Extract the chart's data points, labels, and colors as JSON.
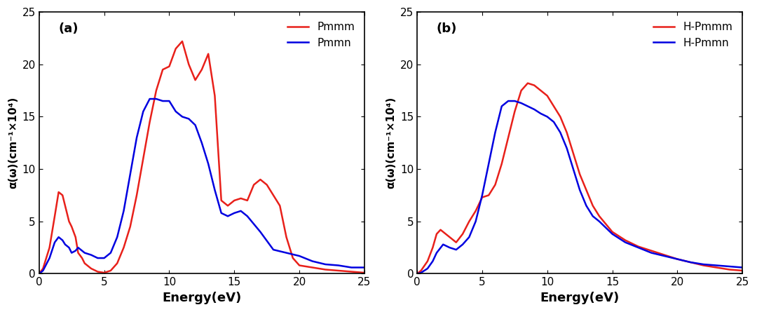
{
  "panel_a": {
    "label": "(a)",
    "legend": [
      "Pmmm",
      "Pmmn"
    ],
    "colors": [
      "#e8201a",
      "#0000e0"
    ],
    "xlabel": "Energy(eV)",
    "ylabel": "α(ω)(cm⁻¹×10⁴)",
    "xlim": [
      0,
      25
    ],
    "ylim": [
      0,
      25
    ],
    "yticks": [
      0,
      5,
      10,
      15,
      20,
      25
    ],
    "xticks": [
      0,
      5,
      10,
      15,
      20,
      25
    ],
    "red_x": [
      0,
      0.3,
      0.8,
      1.2,
      1.5,
      1.8,
      2.0,
      2.3,
      2.5,
      2.8,
      3.0,
      3.3,
      3.5,
      4.0,
      4.5,
      5.0,
      5.5,
      6.0,
      6.5,
      7.0,
      7.5,
      8.0,
      8.5,
      9.0,
      9.5,
      10.0,
      10.5,
      11.0,
      11.5,
      12.0,
      12.5,
      13.0,
      13.5,
      14.0,
      14.5,
      15.0,
      15.5,
      16.0,
      16.5,
      17.0,
      17.5,
      18.0,
      18.5,
      19.0,
      19.5,
      20.0,
      20.5,
      21.0,
      22.0,
      23.0,
      24.0,
      25.0
    ],
    "red_y": [
      0,
      0.5,
      2.5,
      5.5,
      7.8,
      7.5,
      6.5,
      5.0,
      4.5,
      3.5,
      2.0,
      1.5,
      1.0,
      0.5,
      0.2,
      0.1,
      0.3,
      1.0,
      2.5,
      4.5,
      7.5,
      11.0,
      14.5,
      17.5,
      19.5,
      19.8,
      21.5,
      22.2,
      20.0,
      18.5,
      19.5,
      21.0,
      17.0,
      7.0,
      6.5,
      7.0,
      7.2,
      7.0,
      8.5,
      9.0,
      8.5,
      7.5,
      6.5,
      3.5,
      1.5,
      0.8,
      0.7,
      0.6,
      0.4,
      0.3,
      0.2,
      0.1
    ],
    "blue_x": [
      0,
      0.3,
      0.8,
      1.2,
      1.5,
      1.8,
      2.0,
      2.3,
      2.5,
      2.8,
      3.0,
      3.5,
      4.0,
      4.5,
      5.0,
      5.5,
      6.0,
      6.5,
      7.0,
      7.5,
      8.0,
      8.5,
      9.0,
      9.5,
      10.0,
      10.5,
      11.0,
      11.5,
      12.0,
      12.5,
      13.0,
      13.5,
      14.0,
      14.5,
      15.0,
      15.5,
      16.0,
      17.0,
      18.0,
      19.0,
      20.0,
      21.0,
      22.0,
      23.0,
      24.0,
      25.0
    ],
    "blue_y": [
      0,
      0.3,
      1.5,
      3.0,
      3.5,
      3.2,
      2.8,
      2.5,
      2.0,
      2.2,
      2.5,
      2.0,
      1.8,
      1.5,
      1.5,
      2.0,
      3.5,
      6.0,
      9.5,
      13.0,
      15.5,
      16.7,
      16.7,
      16.5,
      16.5,
      15.5,
      15.0,
      14.8,
      14.2,
      12.5,
      10.5,
      8.0,
      5.8,
      5.5,
      5.8,
      6.0,
      5.5,
      4.0,
      2.3,
      2.0,
      1.7,
      1.2,
      0.9,
      0.8,
      0.6,
      0.6
    ]
  },
  "panel_b": {
    "label": "(b)",
    "legend": [
      "H-Pmmm",
      "H-Pmmn"
    ],
    "colors": [
      "#e8201a",
      "#0000e0"
    ],
    "xlabel": "Energy(eV)",
    "ylabel": "α(ω)(cm⁻¹×10⁴)",
    "xlim": [
      0,
      25
    ],
    "ylim": [
      0,
      25
    ],
    "yticks": [
      0,
      5,
      10,
      15,
      20,
      25
    ],
    "xticks": [
      0,
      5,
      10,
      15,
      20,
      25
    ],
    "red_x": [
      0,
      0.3,
      0.8,
      1.2,
      1.5,
      1.8,
      2.0,
      2.5,
      3.0,
      3.5,
      4.0,
      4.5,
      5.0,
      5.5,
      6.0,
      6.5,
      7.0,
      7.5,
      8.0,
      8.5,
      9.0,
      9.5,
      10.0,
      10.5,
      11.0,
      11.5,
      12.0,
      12.5,
      13.0,
      13.5,
      14.0,
      15.0,
      16.0,
      17.0,
      18.0,
      19.0,
      20.0,
      21.0,
      22.0,
      23.0,
      24.0,
      25.0
    ],
    "red_y": [
      0,
      0.3,
      1.2,
      2.5,
      3.8,
      4.2,
      4.0,
      3.5,
      3.0,
      3.8,
      5.0,
      6.0,
      7.3,
      7.5,
      8.5,
      10.5,
      13.0,
      15.5,
      17.5,
      18.2,
      18.0,
      17.5,
      17.0,
      16.0,
      15.0,
      13.5,
      11.5,
      9.5,
      8.0,
      6.5,
      5.5,
      4.0,
      3.2,
      2.6,
      2.2,
      1.8,
      1.4,
      1.1,
      0.8,
      0.6,
      0.4,
      0.3
    ],
    "blue_x": [
      0,
      0.3,
      0.8,
      1.2,
      1.5,
      2.0,
      2.5,
      3.0,
      3.5,
      4.0,
      4.5,
      5.0,
      5.5,
      6.0,
      6.5,
      7.0,
      7.5,
      8.0,
      8.5,
      9.0,
      9.5,
      10.0,
      10.5,
      11.0,
      11.5,
      12.0,
      12.5,
      13.0,
      13.5,
      14.0,
      15.0,
      16.0,
      17.0,
      18.0,
      19.0,
      20.0,
      21.0,
      22.0,
      23.0,
      24.0,
      25.0
    ],
    "blue_y": [
      0,
      0.1,
      0.5,
      1.2,
      2.0,
      2.8,
      2.5,
      2.3,
      2.8,
      3.5,
      5.0,
      7.5,
      10.5,
      13.5,
      16.0,
      16.5,
      16.5,
      16.3,
      16.0,
      15.7,
      15.3,
      15.0,
      14.5,
      13.5,
      12.0,
      10.0,
      8.0,
      6.5,
      5.5,
      5.0,
      3.8,
      3.0,
      2.5,
      2.0,
      1.7,
      1.4,
      1.1,
      0.9,
      0.8,
      0.7,
      0.6
    ]
  },
  "background_color": "#ffffff",
  "line_width": 1.8
}
